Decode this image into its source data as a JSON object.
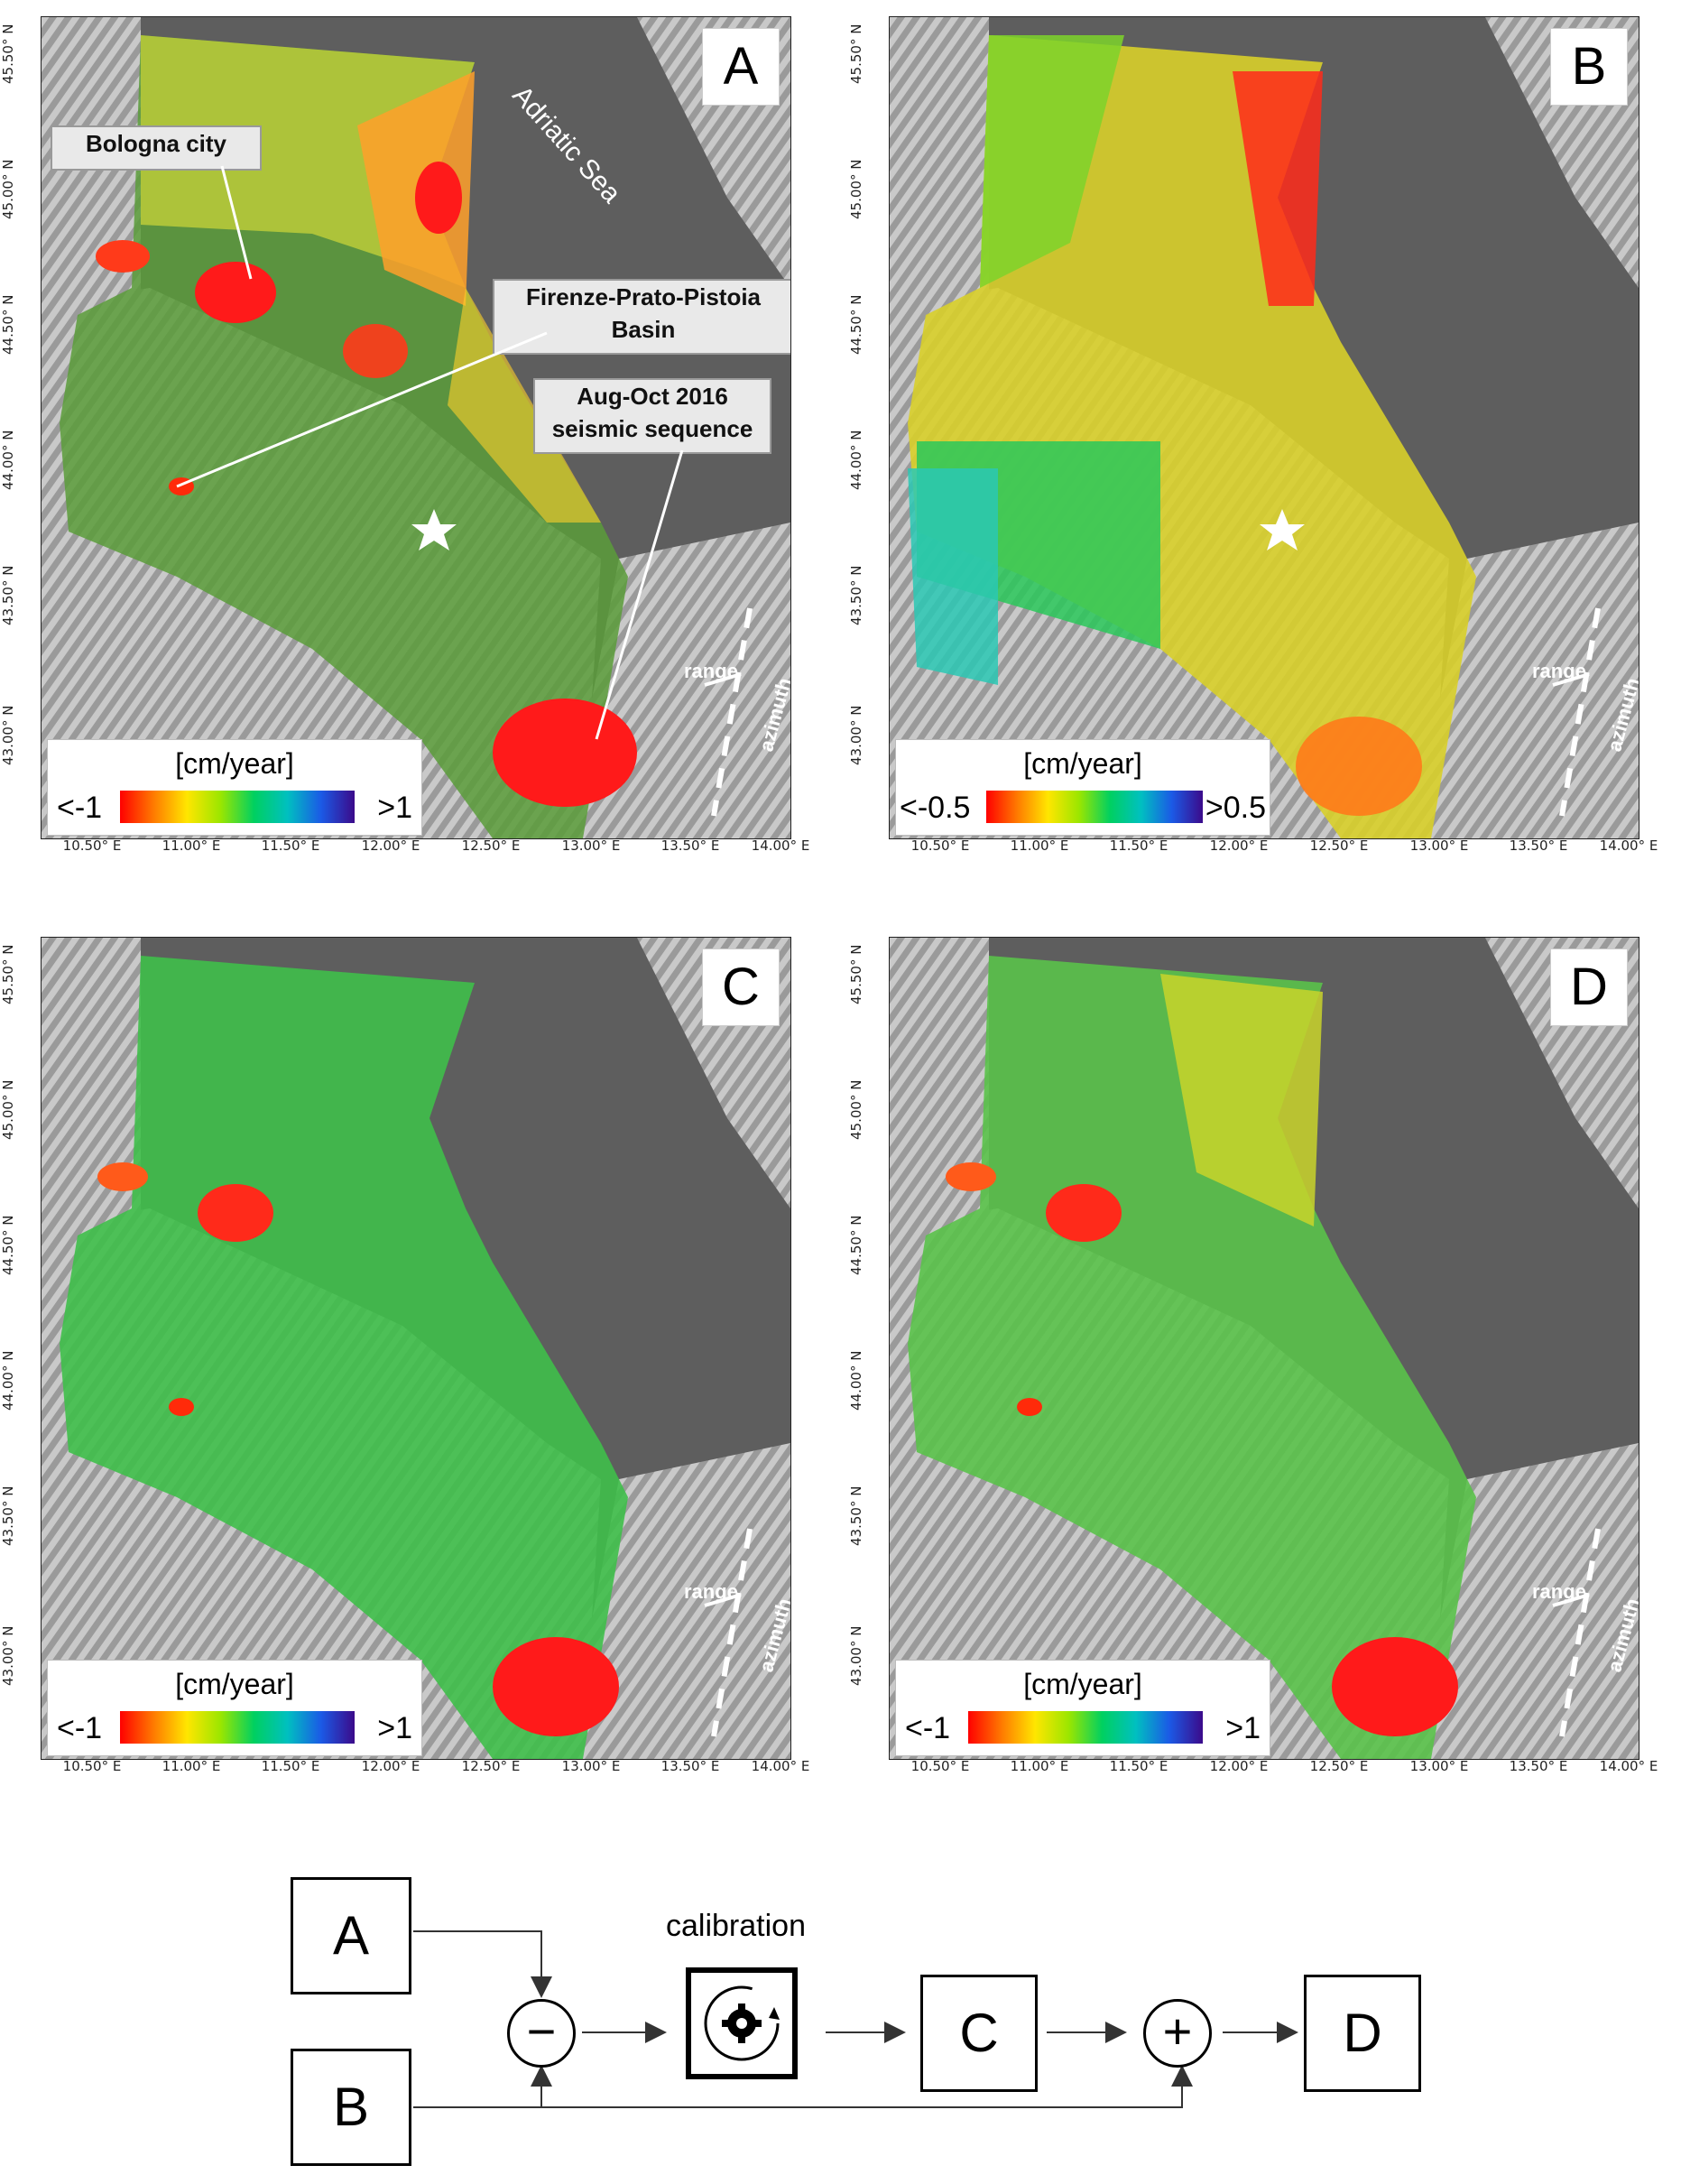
{
  "panels": [
    {
      "letter": "A",
      "legend": {
        "unit": "[cm/year]",
        "min": "<-1",
        "max": ">1"
      }
    },
    {
      "letter": "B",
      "legend": {
        "unit": "[cm/year]",
        "min": "<-0.5",
        "max": ">0.5"
      }
    },
    {
      "letter": "C",
      "legend": {
        "unit": "[cm/year]",
        "min": "<-1",
        "max": ">1"
      }
    },
    {
      "letter": "D",
      "legend": {
        "unit": "[cm/year]",
        "min": "<-1",
        "max": ">1"
      }
    }
  ],
  "axes": {
    "lat_ticks": [
      "45.50° N",
      "45.00° N",
      "44.50° N",
      "44.00° N",
      "43.50° N",
      "43.00° N"
    ],
    "lon_ticks": [
      "10.50° E",
      "11.00° E",
      "11.50° E",
      "12.00° E",
      "12.50° E",
      "13.00° E",
      "13.50° E",
      "14.00° E"
    ]
  },
  "annotations": {
    "bologna": "Bologna city",
    "firenze_line1": "Firenze-Prato-Pistoia",
    "firenze_line2": "Basin",
    "seismic_line1": "Aug-Oct 2016",
    "seismic_line2": "seismic sequence",
    "sea": "Adriatic Sea",
    "range": "range",
    "azimuth": "azimuth"
  },
  "flow": {
    "box_a": "A",
    "box_b": "B",
    "box_c": "C",
    "box_d": "D",
    "minus": "−",
    "plus": "+",
    "calibration": "calibration"
  },
  "colors": {
    "scale": [
      "#ff0000",
      "#ff7a00",
      "#ffe600",
      "#9be600",
      "#00d060",
      "#00c0c0",
      "#1b5ae6",
      "#3b0a8a"
    ],
    "sea": "#5e5e5e"
  }
}
